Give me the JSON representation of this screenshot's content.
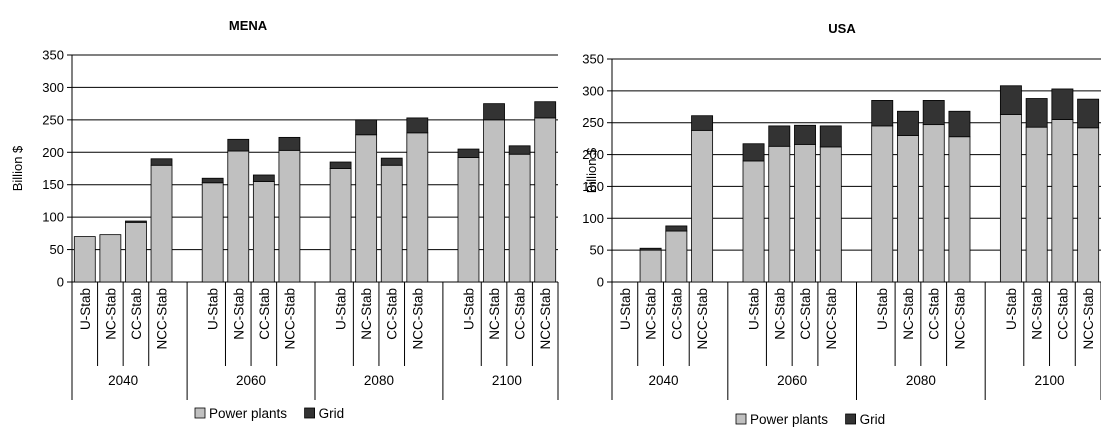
{
  "colors": {
    "power_plants": "#c0c0c0",
    "grid": "#333333",
    "axis": "#000000",
    "gridline": "#000000"
  },
  "chart_data": [
    {
      "type": "bar",
      "stacked": true,
      "title": "MENA",
      "ylabel": "Billion $",
      "xlabel": "",
      "ylim": [
        0,
        350
      ],
      "yticks": [
        0,
        50,
        100,
        150,
        200,
        250,
        300,
        350
      ],
      "grid": true,
      "legend_placement": "bottom",
      "groups": [
        {
          "label": "2040",
          "categories": [
            "U-Stab",
            "NC-Stab",
            "CC-Stab",
            "NCC-Stab"
          ]
        },
        {
          "label": "2060",
          "categories": [
            "U-Stab",
            "NC-Stab",
            "CC-Stab",
            "NCC-Stab"
          ]
        },
        {
          "label": "2080",
          "categories": [
            "U-Stab",
            "NC-Stab",
            "CC-Stab",
            "NCC-Stab"
          ]
        },
        {
          "label": "2100",
          "categories": [
            "U-Stab",
            "NC-Stab",
            "CC-Stab",
            "NCC-Stab"
          ]
        }
      ],
      "series": [
        {
          "name": "Power plants",
          "color": "#c0c0c0",
          "values": [
            70,
            73,
            92,
            180,
            153,
            202,
            155,
            203,
            175,
            227,
            180,
            230,
            192,
            250,
            197,
            253
          ]
        },
        {
          "name": "Grid",
          "color": "#333333",
          "values": [
            0,
            0,
            2,
            10,
            7,
            18,
            10,
            20,
            10,
            23,
            11,
            23,
            13,
            25,
            13,
            25
          ]
        }
      ]
    },
    {
      "type": "bar",
      "stacked": true,
      "title": "USA",
      "ylabel": "Billion $",
      "xlabel": "",
      "ylim": [
        0,
        350
      ],
      "yticks": [
        0,
        50,
        100,
        150,
        200,
        250,
        300,
        350
      ],
      "grid": true,
      "legend_placement": "bottom",
      "groups": [
        {
          "label": "2040",
          "categories": [
            "U-Stab",
            "NC-Stab",
            "CC-Stab",
            "NCC-Stab"
          ]
        },
        {
          "label": "2060",
          "categories": [
            "U-Stab",
            "NC-Stab",
            "CC-Stab",
            "NCC-Stab"
          ]
        },
        {
          "label": "2080",
          "categories": [
            "U-Stab",
            "NC-Stab",
            "CC-Stab",
            "NCC-Stab"
          ]
        },
        {
          "label": "2100",
          "categories": [
            "U-Stab",
            "NC-Stab",
            "CC-Stab",
            "NCC-Stab"
          ]
        }
      ],
      "series": [
        {
          "name": "Power plants",
          "color": "#c0c0c0",
          "values": [
            0,
            50,
            80,
            238,
            190,
            213,
            216,
            212,
            245,
            230,
            247,
            228,
            263,
            243,
            255,
            242
          ]
        },
        {
          "name": "Grid",
          "color": "#333333",
          "values": [
            0,
            3,
            8,
            23,
            27,
            32,
            30,
            33,
            40,
            38,
            38,
            40,
            45,
            45,
            48,
            45
          ]
        }
      ]
    }
  ]
}
